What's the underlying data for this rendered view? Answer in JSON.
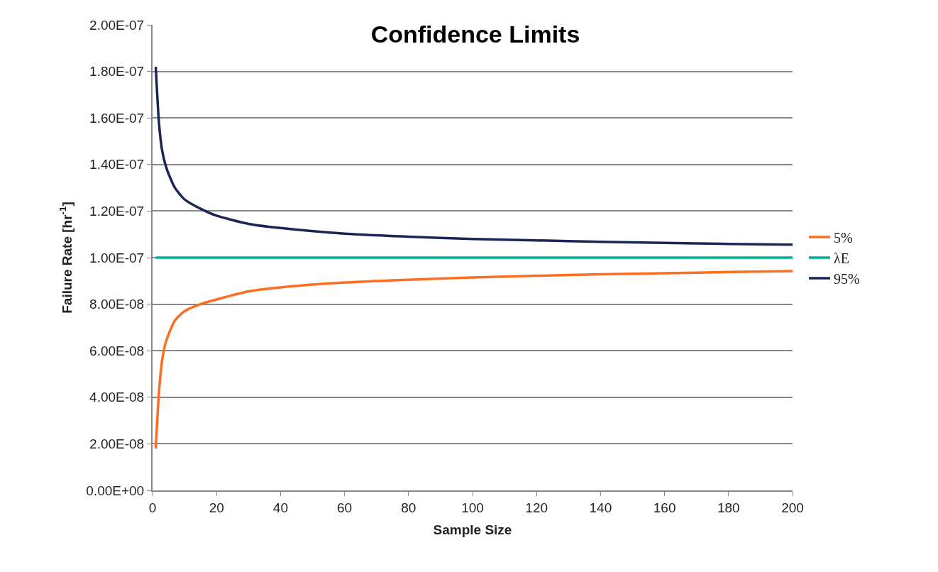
{
  "chart_data": {
    "type": "line",
    "title": "Confidence Limits",
    "xlabel": "Sample Size",
    "ylabel": "Failure Rate [hr$^{-1}$]",
    "x": [
      1,
      2,
      3,
      4,
      5,
      7,
      10,
      15,
      20,
      30,
      40,
      60,
      80,
      100,
      120,
      140,
      160,
      180,
      200
    ],
    "series": [
      {
        "name": "5%",
        "color": "#ff6d21",
        "values": [
          1.8e-08,
          4.2e-08,
          5.6e-08,
          6.3e-08,
          6.7e-08,
          7.3e-08,
          7.7e-08,
          8e-08,
          8.2e-08,
          8.55e-08,
          8.72e-08,
          8.93e-08,
          9.05e-08,
          9.15e-08,
          9.22e-08,
          9.28e-08,
          9.33e-08,
          9.38e-08,
          9.42e-08
        ]
      },
      {
        "name": "λE",
        "color": "#00b09a",
        "values": [
          1e-07,
          1e-07,
          1e-07,
          1e-07,
          1e-07,
          1e-07,
          1e-07,
          1e-07,
          1e-07,
          1e-07,
          1e-07,
          1e-07,
          1e-07,
          1e-07,
          1e-07,
          1e-07,
          1e-07,
          1e-07,
          1e-07
        ]
      },
      {
        "name": "95%",
        "color": "#1b2656",
        "values": [
          1.82e-07,
          1.58e-07,
          1.46e-07,
          1.4e-07,
          1.36e-07,
          1.3e-07,
          1.25e-07,
          1.21e-07,
          1.18e-07,
          1.145e-07,
          1.127e-07,
          1.103e-07,
          1.09e-07,
          1.08e-07,
          1.074e-07,
          1.068e-07,
          1.063e-07,
          1.059e-07,
          1.056e-07
        ]
      }
    ],
    "xlim": [
      0,
      200
    ],
    "xticks": [
      0,
      20,
      40,
      60,
      80,
      100,
      120,
      140,
      160,
      180,
      200
    ],
    "ylim": [
      0,
      2e-07
    ],
    "yticks": [
      {
        "value": 0,
        "label": "0.00E+00"
      },
      {
        "value": 2e-08,
        "label": "2.00E-08"
      },
      {
        "value": 4e-08,
        "label": "4.00E-08"
      },
      {
        "value": 6e-08,
        "label": "6.00E-08"
      },
      {
        "value": 8e-08,
        "label": "8.00E-08"
      },
      {
        "value": 1e-07,
        "label": "1.00E-07"
      },
      {
        "value": 1.2e-07,
        "label": "1.20E-07"
      },
      {
        "value": 1.4e-07,
        "label": "1.40E-07"
      },
      {
        "value": 1.6e-07,
        "label": "1.60E-07"
      },
      {
        "value": 1.8e-07,
        "label": "1.80E-07"
      },
      {
        "value": 2e-07,
        "label": "2.00E-07"
      }
    ],
    "grid": "y",
    "legend": "right",
    "marker": "none",
    "line_style": "solid"
  }
}
